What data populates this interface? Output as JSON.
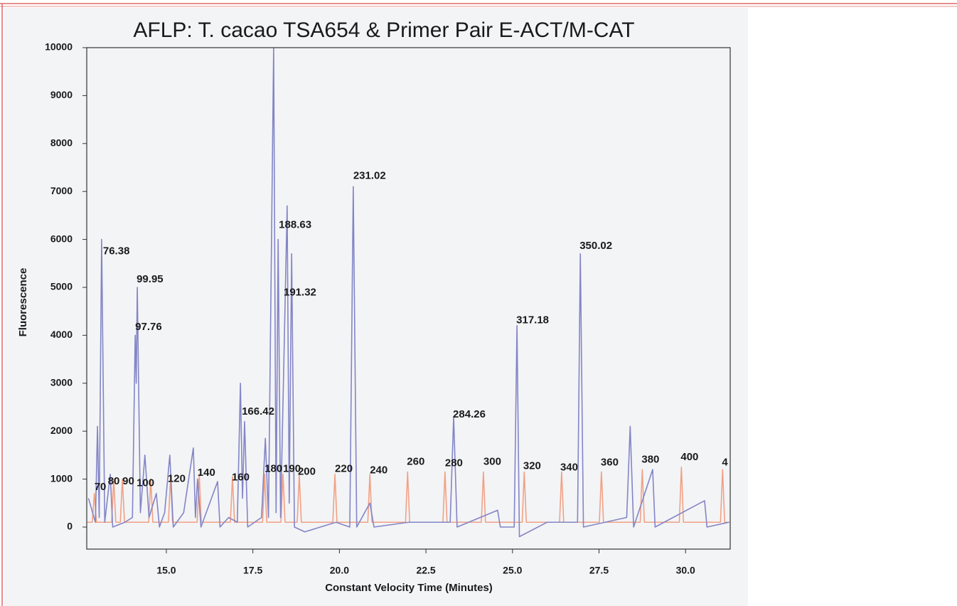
{
  "chart_data": {
    "type": "line",
    "title": "AFLP:  T. cacao TSA654 & Primer Pair E-ACT/M-CAT",
    "xlabel": "Constant Velocity Time (Minutes)",
    "ylabel": "Fluorescence",
    "xlim": [
      12.7,
      31.29
    ],
    "ylim": [
      -460,
      10000
    ],
    "xticks": [
      {
        "value": 15,
        "label": "15.0"
      },
      {
        "value": 17.5,
        "label": "17.5"
      },
      {
        "value": 20,
        "label": "20.0"
      },
      {
        "value": 22.5,
        "label": "22.5"
      },
      {
        "value": 25,
        "label": "25.0"
      },
      {
        "value": 27.5,
        "label": "27.5"
      },
      {
        "value": 30,
        "label": "30.0"
      }
    ],
    "yticks": [
      0,
      1000,
      2000,
      3000,
      4000,
      5000,
      6000,
      7000,
      8000,
      9000,
      10000
    ],
    "grid": false,
    "series": [
      {
        "color": "#f2a184",
        "x": [
          12.7,
          12.86,
          12.92,
          12.98,
          13.42,
          13.48,
          13.54,
          13.67,
          13.73,
          13.79,
          14.49,
          14.55,
          14.61,
          15.06,
          15.12,
          15.18,
          15.89,
          15.95,
          16.01,
          16.85,
          16.91,
          16.97,
          17.78,
          17.84,
          17.9,
          18.31,
          18.37,
          18.43,
          18.78,
          18.84,
          18.9,
          19.81,
          19.87,
          19.93,
          20.82,
          20.88,
          20.94,
          21.91,
          21.97,
          22.03,
          22.99,
          23.05,
          23.11,
          24.1,
          24.16,
          24.22,
          25.28,
          25.34,
          25.4,
          26.36,
          26.42,
          26.48,
          27.51,
          27.57,
          27.63,
          28.69,
          28.75,
          28.81,
          29.82,
          29.88,
          29.94,
          31.01,
          31.07,
          31.13,
          31.29
        ],
        "values": [
          100,
          100,
          700,
          100,
          100,
          1000,
          100,
          100,
          1000,
          100,
          100,
          1000,
          100,
          100,
          1050,
          100,
          100,
          1100,
          100,
          100,
          1050,
          100,
          100,
          1100,
          100,
          100,
          1100,
          100,
          100,
          1100,
          100,
          100,
          1100,
          100,
          100,
          1100,
          100,
          100,
          1150,
          100,
          100,
          1150,
          100,
          100,
          1150,
          100,
          100,
          1150,
          100,
          100,
          1150,
          100,
          100,
          1150,
          100,
          100,
          1200,
          100,
          100,
          1250,
          100,
          100,
          1200,
          100,
          100
        ]
      },
      {
        "color": "#8385c6",
        "x": [
          12.75,
          12.95,
          13.01,
          13.06,
          13.13,
          13.22,
          13.38,
          13.45,
          13.8,
          14.02,
          14.1,
          14.13,
          14.16,
          14.25,
          14.38,
          14.5,
          14.71,
          14.8,
          14.95,
          15.1,
          15.2,
          15.5,
          15.78,
          15.84,
          15.9,
          16.0,
          16.48,
          16.55,
          16.8,
          17.05,
          17.14,
          17.2,
          17.26,
          17.35,
          17.75,
          17.86,
          17.95,
          18.1,
          18.17,
          18.23,
          18.3,
          18.49,
          18.55,
          18.62,
          18.7,
          19.0,
          19.9,
          20.3,
          20.4,
          20.5,
          20.88,
          21.0,
          22.0,
          23.2,
          23.3,
          23.4,
          24.57,
          24.65,
          25.05,
          25.13,
          25.2,
          26.0,
          26.88,
          26.96,
          27.05,
          28.3,
          28.4,
          28.5,
          29.05,
          29.12,
          30.55,
          30.62,
          31.25
        ],
        "values": [
          600,
          100,
          2100,
          200,
          6000,
          100,
          1100,
          0,
          100,
          200,
          4000,
          3000,
          5000,
          300,
          1500,
          200,
          700,
          0,
          300,
          1500,
          0,
          300,
          1650,
          200,
          1000,
          0,
          950,
          0,
          200,
          100,
          3000,
          600,
          2200,
          0,
          200,
          1850,
          200,
          10000,
          300,
          6000,
          200,
          6700,
          500,
          5700,
          0,
          -100,
          100,
          0,
          7100,
          0,
          500,
          0,
          100,
          100,
          2300,
          0,
          350,
          0,
          0,
          4200,
          -200,
          100,
          100,
          5700,
          0,
          200,
          2100,
          0,
          1200,
          0,
          550,
          0,
          100
        ]
      }
    ],
    "annotations": [
      {
        "text": "76.38",
        "x": 13.17,
        "y": 5750
      },
      {
        "text": "99.95",
        "x": 14.14,
        "y": 5160
      },
      {
        "text": "97.76",
        "x": 14.1,
        "y": 4170
      },
      {
        "text": "166.42",
        "x": 17.18,
        "y": 2400
      },
      {
        "text": "188.63",
        "x": 18.25,
        "y": 6300
      },
      {
        "text": "191.32",
        "x": 18.39,
        "y": 4890
      },
      {
        "text": "231.02",
        "x": 20.4,
        "y": 7320
      },
      {
        "text": "284.26",
        "x": 23.28,
        "y": 2340
      },
      {
        "text": "317.18",
        "x": 25.11,
        "y": 4310
      },
      {
        "text": "350.02",
        "x": 26.94,
        "y": 5860
      },
      {
        "text": "70",
        "x": 12.92,
        "y": 830
      },
      {
        "text": "80",
        "x": 13.31,
        "y": 950
      },
      {
        "text": "90",
        "x": 13.73,
        "y": 950
      },
      {
        "text": "100",
        "x": 14.14,
        "y": 910
      },
      {
        "text": "120",
        "x": 15.04,
        "y": 1000
      },
      {
        "text": "140",
        "x": 15.9,
        "y": 1130
      },
      {
        "text": "160",
        "x": 16.89,
        "y": 1030
      },
      {
        "text": "180",
        "x": 17.84,
        "y": 1210
      },
      {
        "text": "190",
        "x": 18.37,
        "y": 1210
      },
      {
        "text": "200",
        "x": 18.8,
        "y": 1150
      },
      {
        "text": "220",
        "x": 19.87,
        "y": 1210
      },
      {
        "text": "240",
        "x": 20.88,
        "y": 1180
      },
      {
        "text": "260",
        "x": 21.95,
        "y": 1360
      },
      {
        "text": "280",
        "x": 23.05,
        "y": 1330
      },
      {
        "text": "300",
        "x": 24.16,
        "y": 1360
      },
      {
        "text": "320",
        "x": 25.31,
        "y": 1270
      },
      {
        "text": "340",
        "x": 26.38,
        "y": 1240
      },
      {
        "text": "360",
        "x": 27.55,
        "y": 1340
      },
      {
        "text": "380",
        "x": 28.73,
        "y": 1400
      },
      {
        "text": "400",
        "x": 29.86,
        "y": 1450
      },
      {
        "text": "4",
        "x": 31.05,
        "y": 1340
      }
    ]
  }
}
